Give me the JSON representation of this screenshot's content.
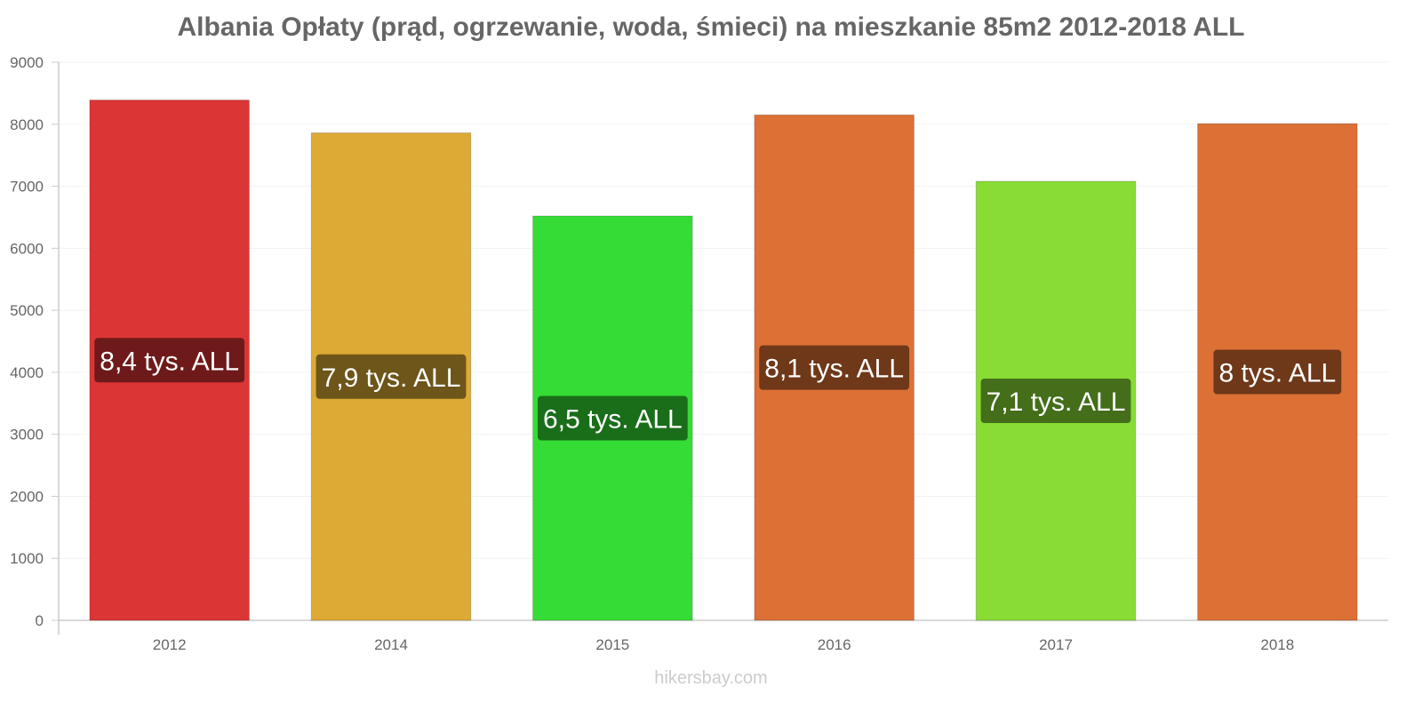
{
  "chart_data": {
    "type": "bar",
    "title": "Albania Opłaty (prąd, ogrzewanie, woda, śmieci) na mieszkanie 85m2 2012-2018 ALL",
    "xlabel": "",
    "ylabel": "",
    "ylim": [
      0,
      9000
    ],
    "yticks": [
      0,
      1000,
      2000,
      3000,
      4000,
      5000,
      6000,
      7000,
      8000,
      9000
    ],
    "grid": true,
    "categories": [
      "2012",
      "2014",
      "2015",
      "2016",
      "2017",
      "2018"
    ],
    "values": [
      8390,
      7860,
      6520,
      8150,
      7080,
      8010
    ],
    "data_labels": [
      "8,4 tys. ALL",
      "7,9 tys. ALL",
      "6,5 tys. ALL",
      "8,1 tys. ALL",
      "7,1 tys. ALL",
      "8 tys. ALL"
    ],
    "bar_colors": [
      "#dc3535",
      "#dcaa35",
      "#35dc35",
      "#dc7035",
      "#88dc35",
      "#dc7035"
    ],
    "label_bg_colors": [
      "#6e1a1a",
      "#6e5519",
      "#1a6e1a",
      "#6e3819",
      "#446e1a",
      "#6e3819"
    ]
  },
  "watermark": "hikersbay.com"
}
